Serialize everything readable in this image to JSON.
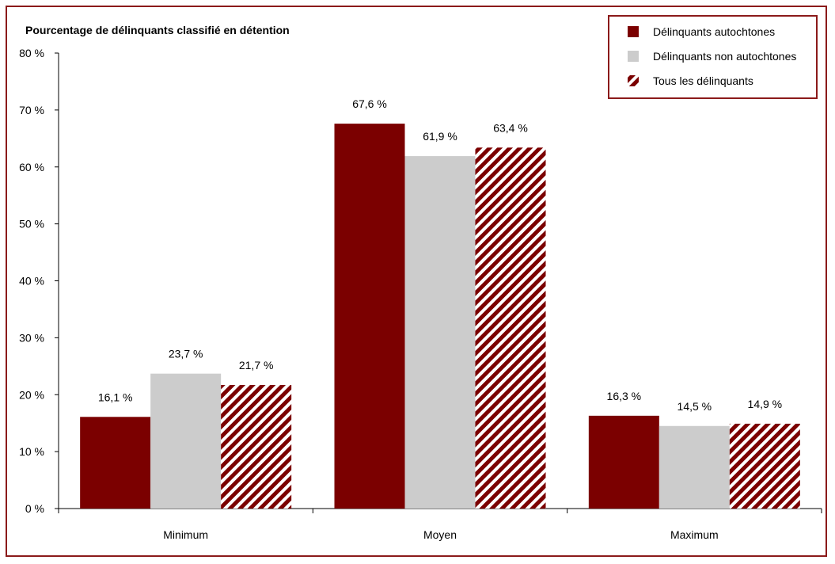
{
  "chart_data": {
    "type": "bar",
    "ylabel": "Pourcentage de délinquants classifié en détention",
    "categories": [
      "Minimum",
      "Moyen",
      "Maximum"
    ],
    "series": [
      {
        "name": "Délinquants autochtones",
        "values": [
          16.1,
          67.6,
          16.3
        ],
        "labels": [
          "16,1 %",
          "67,6 %",
          "16,3 %"
        ],
        "color": "#7b0000",
        "pattern": "solid"
      },
      {
        "name": "Délinquants non autochtones",
        "values": [
          23.7,
          61.9,
          14.5
        ],
        "labels": [
          "23,7 %",
          "61,9 %",
          "14,5 %"
        ],
        "color": "#cccccc",
        "pattern": "solid"
      },
      {
        "name": "Tous les délinquants",
        "values": [
          21.7,
          63.4,
          14.9
        ],
        "labels": [
          "21,7 %",
          "63,4 %",
          "14,9 %"
        ],
        "color": "#7b0000",
        "pattern": "diagonal-stripes"
      }
    ],
    "ylim": [
      0,
      80
    ],
    "yticks": [
      "0 %",
      "10 %",
      "20 %",
      "30 %",
      "40 %",
      "50 %",
      "60 %",
      "70 %",
      "80 %"
    ],
    "grid": false,
    "legend_position": "top-right"
  }
}
